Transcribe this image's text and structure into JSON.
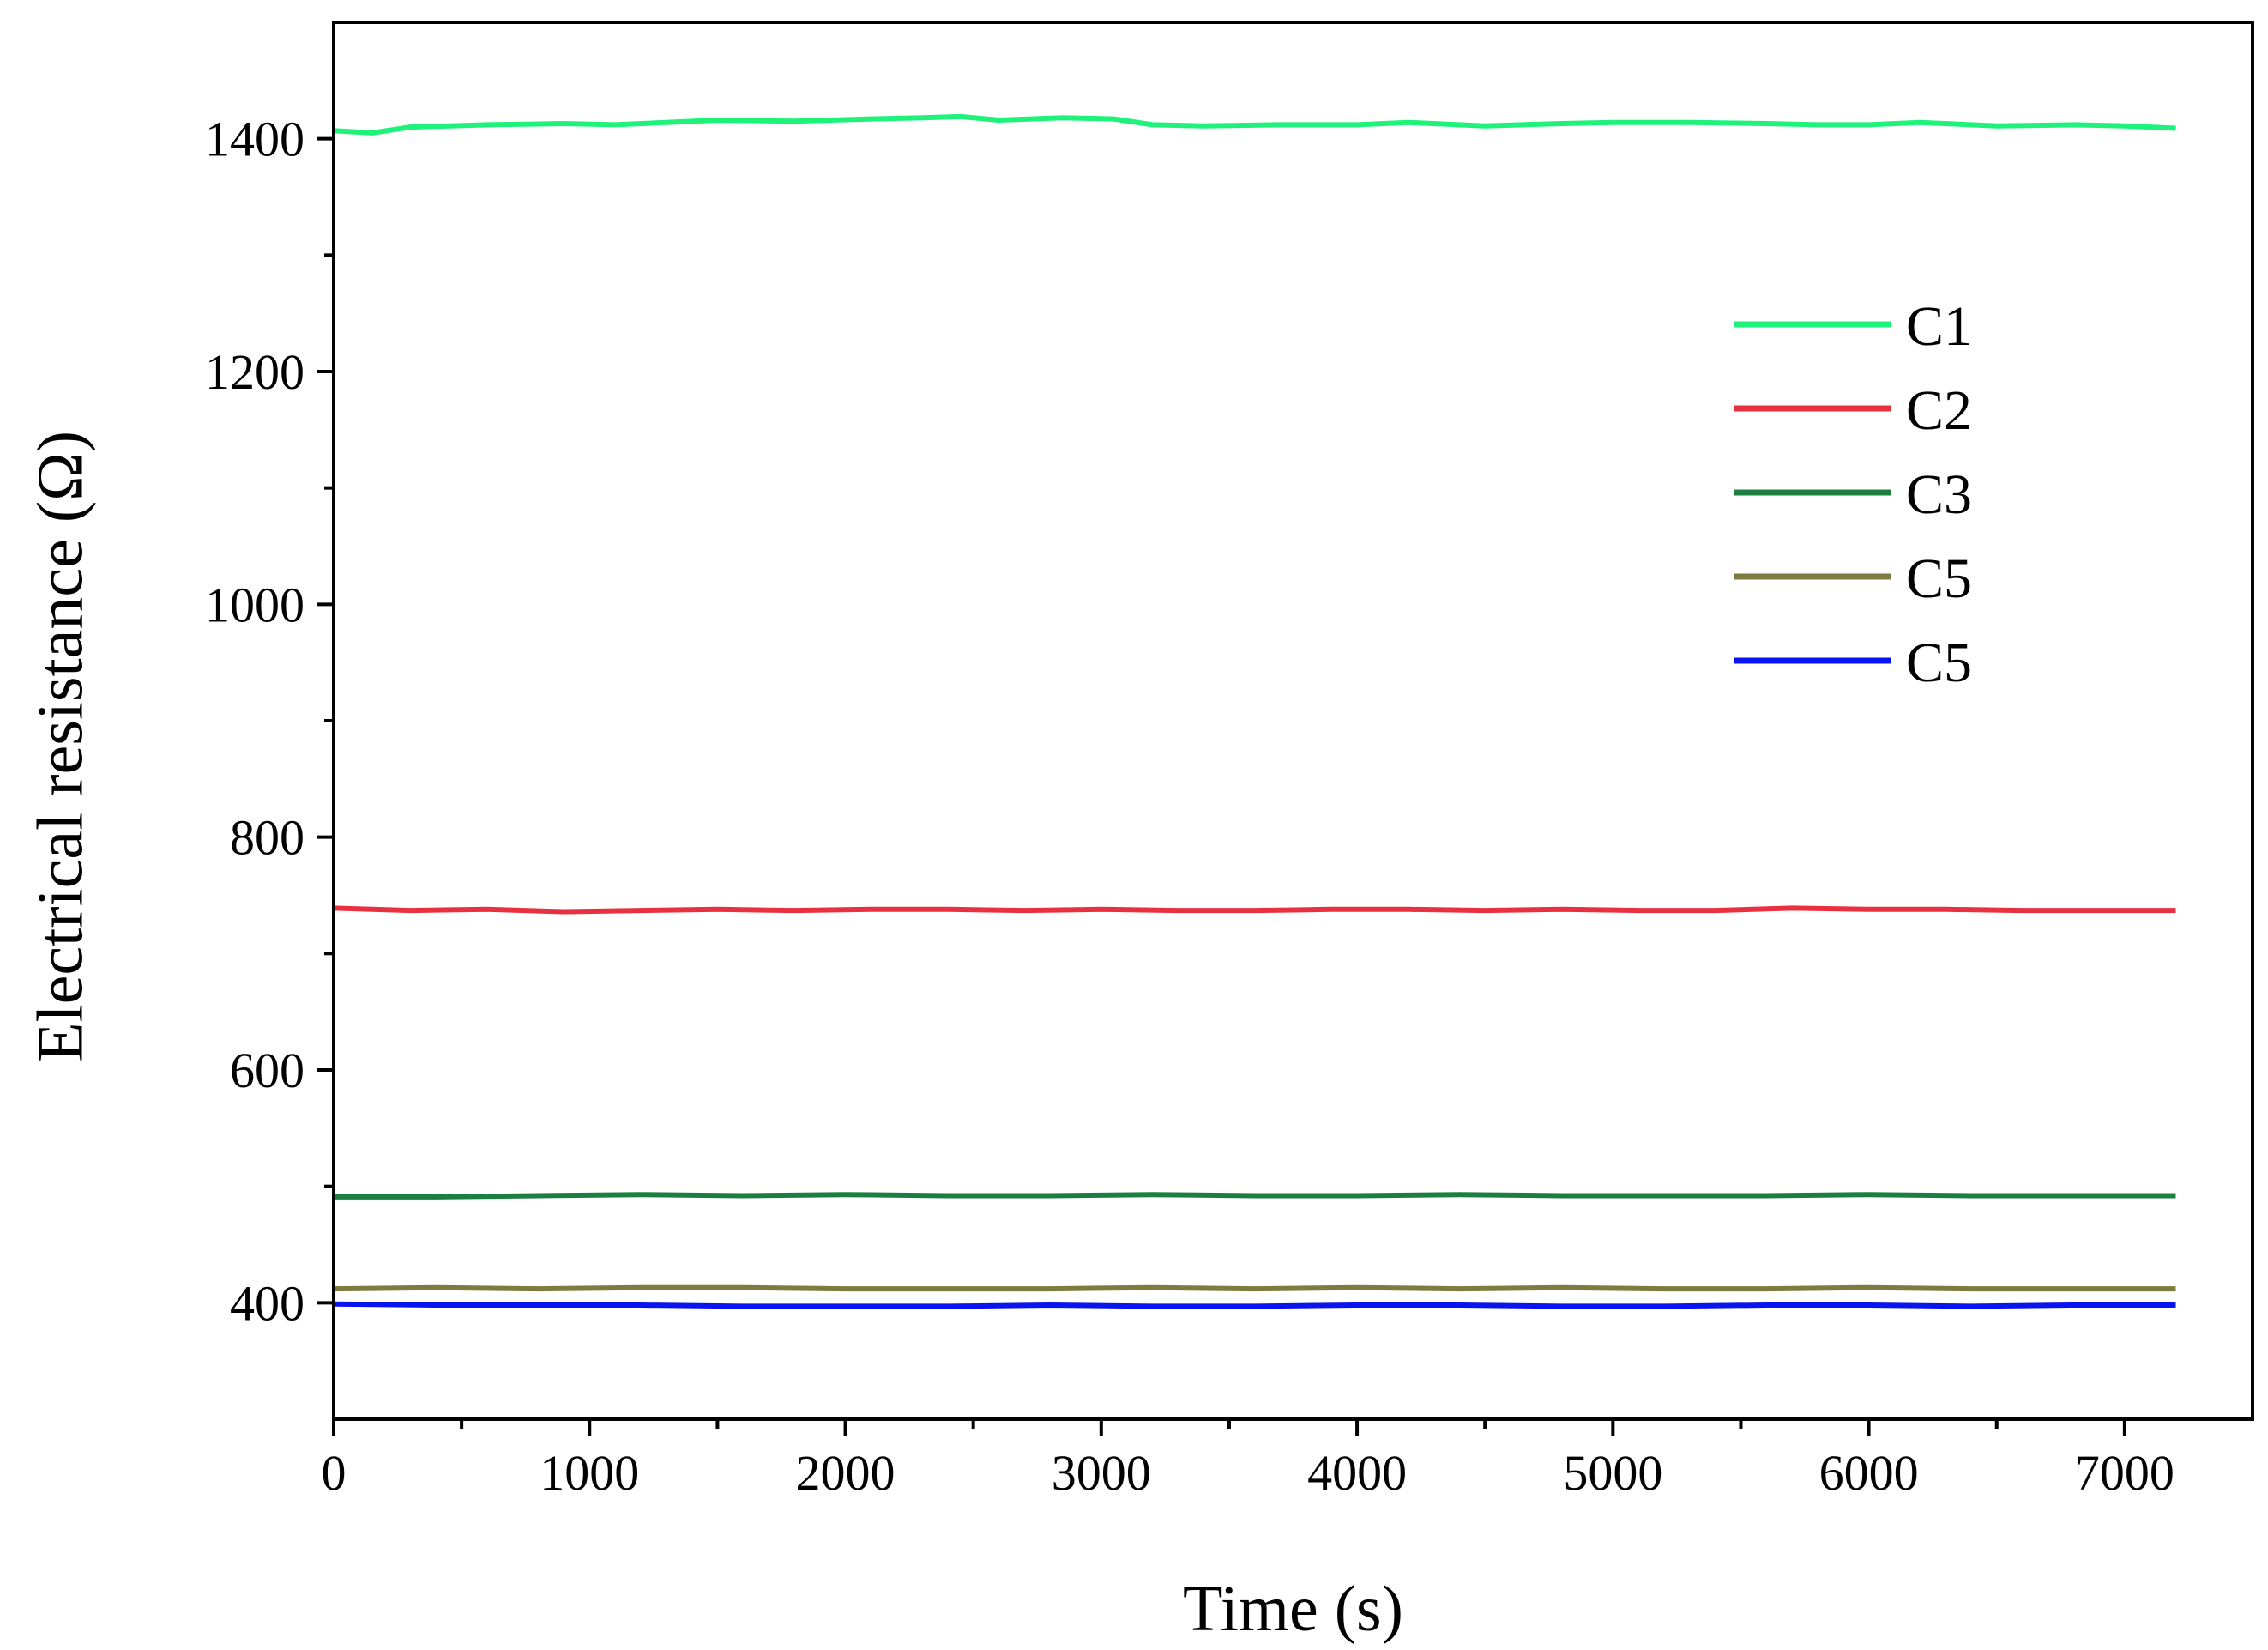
{
  "chart_data": {
    "type": "line",
    "title": "",
    "xlabel": "Time (s)",
    "ylabel": "Electrical resistance (Ω)",
    "xlim": [
      0,
      7500
    ],
    "ylim": [
      300,
      1500
    ],
    "xticks": [
      0,
      1000,
      2000,
      3000,
      4000,
      5000,
      6000,
      7000
    ],
    "xtick_labels": [
      "0",
      "1000",
      "2000",
      "3000",
      "4000",
      "5000",
      "6000",
      "7000"
    ],
    "yticks": [
      400,
      600,
      800,
      1000,
      1200,
      1400
    ],
    "ytick_labels": [
      "400",
      "600",
      "800",
      "1000",
      "1200",
      "1400"
    ],
    "grid": false,
    "legend_position": "right",
    "series": [
      {
        "name": "C1",
        "color": "#1ef27a",
        "x": [
          0,
          150,
          300,
          600,
          900,
          1100,
          1300,
          1500,
          1800,
          2100,
          2300,
          2450,
          2600,
          2850,
          3050,
          3200,
          3400,
          3700,
          4000,
          4200,
          4500,
          4800,
          5000,
          5300,
          5600,
          5800,
          6000,
          6200,
          6500,
          6800,
          7000,
          7200
        ],
        "y": [
          1407,
          1405,
          1410,
          1412,
          1413,
          1412,
          1414,
          1416,
          1415,
          1417,
          1418,
          1419,
          1416,
          1418,
          1417,
          1412,
          1411,
          1412,
          1412,
          1414,
          1411,
          1413,
          1414,
          1414,
          1413,
          1412,
          1412,
          1414,
          1411,
          1412,
          1411,
          1409
        ]
      },
      {
        "name": "C2",
        "color": "#e8303f",
        "x": [
          0,
          300,
          600,
          900,
          1200,
          1500,
          1800,
          2100,
          2400,
          2700,
          3000,
          3300,
          3600,
          3900,
          4200,
          4500,
          4800,
          5100,
          5400,
          5700,
          6000,
          6300,
          6600,
          6900,
          7200
        ],
        "y": [
          739,
          737,
          738,
          736,
          737,
          738,
          737,
          738,
          738,
          737,
          738,
          737,
          737,
          738,
          738,
          737,
          738,
          737,
          737,
          739,
          738,
          738,
          737,
          737,
          737
        ]
      },
      {
        "name": "C3",
        "color": "#1b7f41",
        "x": [
          0,
          400,
          800,
          1200,
          1600,
          2000,
          2400,
          2800,
          3200,
          3600,
          4000,
          4400,
          4800,
          5200,
          5600,
          6000,
          6400,
          6800,
          7200
        ],
        "y": [
          491,
          491,
          492,
          493,
          492,
          493,
          492,
          492,
          493,
          492,
          492,
          493,
          492,
          492,
          492,
          493,
          492,
          492,
          492
        ]
      },
      {
        "name": "C5",
        "color": "#7d7b3d",
        "x": [
          0,
          400,
          800,
          1200,
          1600,
          2000,
          2400,
          2800,
          3200,
          3600,
          4000,
          4400,
          4800,
          5200,
          5600,
          6000,
          6400,
          6800,
          7200
        ],
        "y": [
          412,
          413,
          412,
          413,
          413,
          412,
          412,
          412,
          413,
          412,
          413,
          412,
          413,
          412,
          412,
          413,
          412,
          412,
          412
        ]
      },
      {
        "name": "C5",
        "color": "#0a14ee",
        "x": [
          0,
          400,
          800,
          1200,
          1600,
          2000,
          2400,
          2800,
          3200,
          3600,
          4000,
          4400,
          4800,
          5200,
          5600,
          6000,
          6400,
          6800,
          7200
        ],
        "y": [
          399,
          398,
          398,
          398,
          397,
          397,
          397,
          398,
          397,
          397,
          398,
          398,
          397,
          397,
          398,
          398,
          397,
          398,
          398
        ]
      }
    ]
  }
}
